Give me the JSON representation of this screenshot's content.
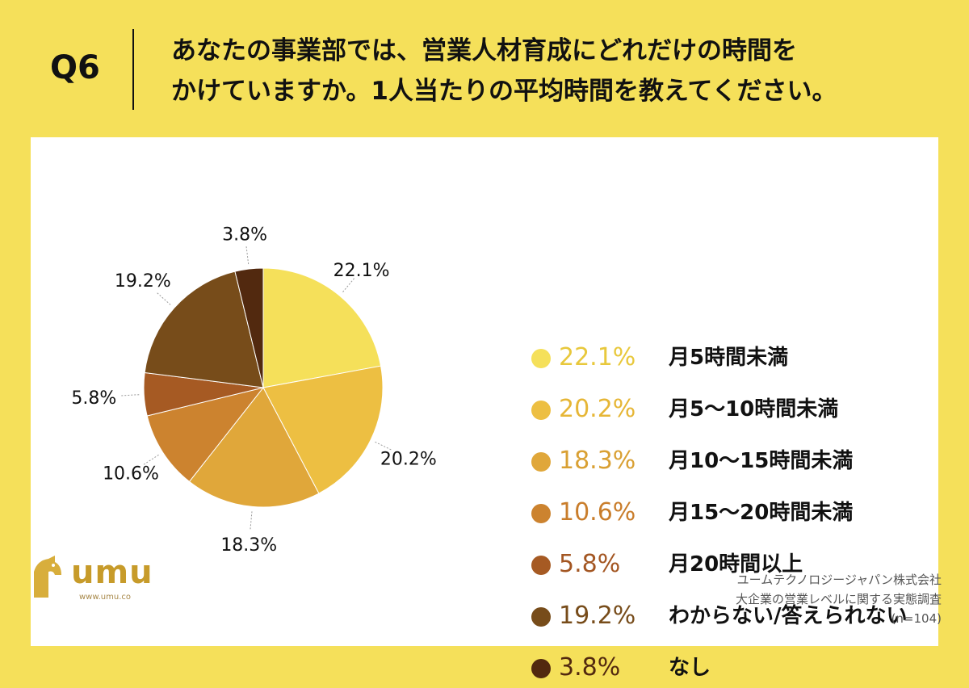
{
  "header": {
    "q_label": "Q6",
    "question_lines": [
      "あなたの事業部では、営業人材育成にどれだけの時間を",
      "かけていますか。1人当たりの平均時間を教えてください。"
    ]
  },
  "chart_data": {
    "type": "pie",
    "title": "",
    "start_angle_deg": 0,
    "direction": "clockwise",
    "slices": [
      {
        "label": "月5時間未満",
        "value": 22.1,
        "value_label": "22.1%",
        "color": "#f5e05a",
        "text_color": "#e8c83c"
      },
      {
        "label": "月5〜10時間未満",
        "value": 20.2,
        "value_label": "20.2%",
        "color": "#edbf42",
        "text_color": "#e6b636"
      },
      {
        "label": "月10〜15時間未満",
        "value": 18.3,
        "value_label": "18.3%",
        "color": "#e0a73a",
        "text_color": "#d9a033"
      },
      {
        "label": "月15〜20時間未満",
        "value": 10.6,
        "value_label": "10.6%",
        "color": "#cc832f",
        "text_color": "#c97d2b"
      },
      {
        "label": "月20時間以上",
        "value": 5.8,
        "value_label": "5.8%",
        "color": "#a65a23",
        "text_color": "#a35622"
      },
      {
        "label": "わからない/答えられない",
        "value": 19.2,
        "value_label": "19.2%",
        "color": "#774c1a",
        "text_color": "#774c1a"
      },
      {
        "label": "なし",
        "value": 3.8,
        "value_label": "3.8%",
        "color": "#52290f",
        "text_color": "#52290f"
      }
    ]
  },
  "logo": {
    "text": "umu",
    "url": "www.umu.co",
    "color": "#c79b2a"
  },
  "source": {
    "lines": [
      "ユームテクノロジージャパン株式会社",
      "大企業の営業レベルに関する実態調査",
      "(n=104)"
    ]
  }
}
